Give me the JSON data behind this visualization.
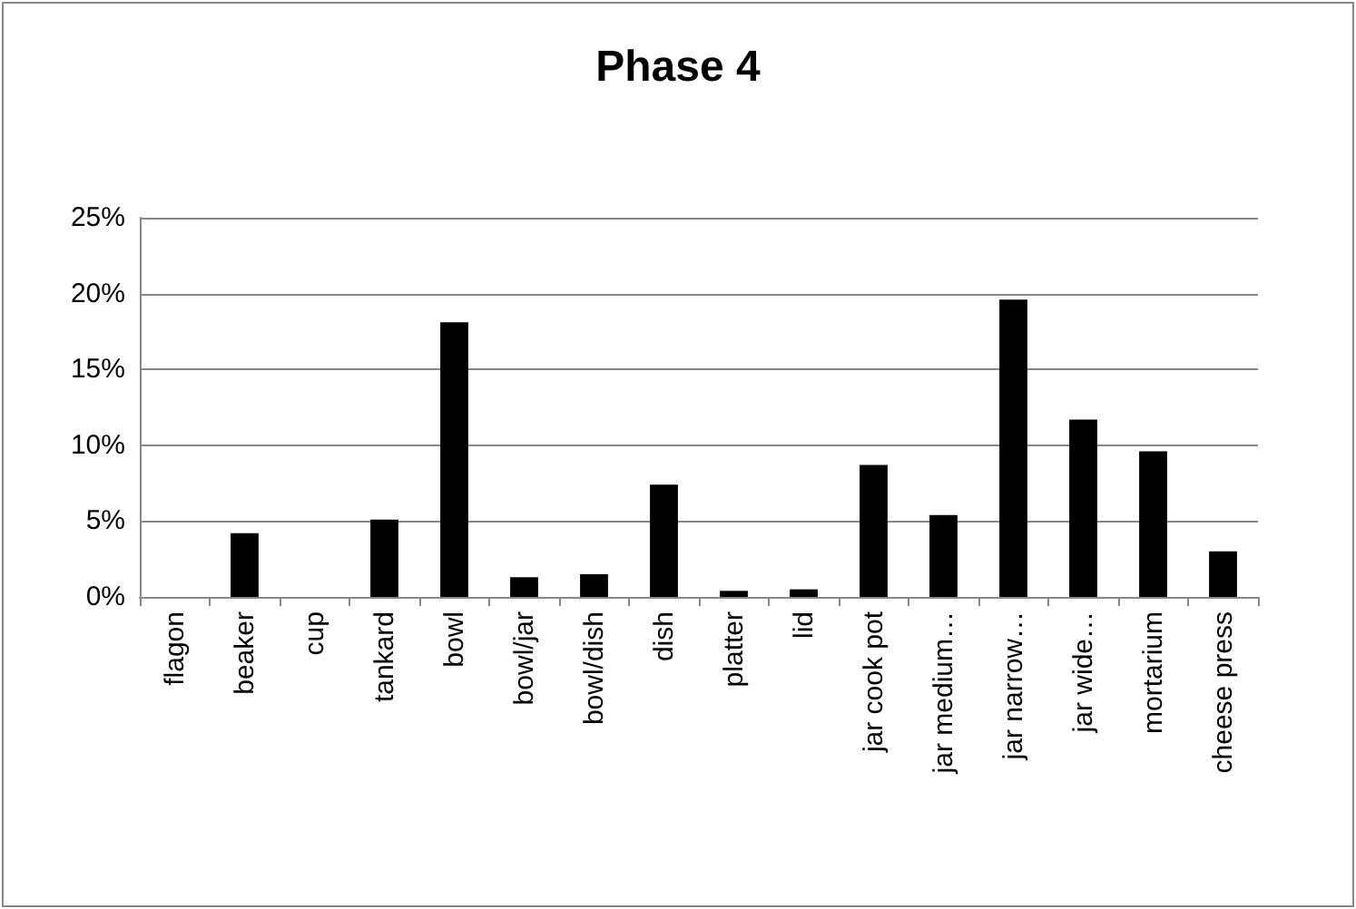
{
  "chart_data": {
    "type": "bar",
    "title": "Phase 4",
    "categories": [
      "flagon",
      "beaker",
      "cup",
      "tankard",
      "bowl",
      "bowl/jar",
      "bowl/dish",
      "dish",
      "platter",
      "lid",
      "jar cook pot",
      "jar medium…",
      "jar narrow…",
      "jar wide…",
      "mortarium",
      "cheese press"
    ],
    "values": [
      0,
      4.2,
      0,
      5.1,
      18.1,
      1.3,
      1.5,
      7.4,
      0.4,
      0.5,
      8.7,
      5.4,
      19.6,
      11.7,
      9.6,
      3.0
    ],
    "color": "#000000",
    "ylim": [
      0,
      25
    ],
    "yticks": [
      {
        "value": 0,
        "label": "0%"
      },
      {
        "value": 5,
        "label": "5%"
      },
      {
        "value": 10,
        "label": "10%"
      },
      {
        "value": 15,
        "label": "15%"
      },
      {
        "value": 20,
        "label": "20%"
      },
      {
        "value": 25,
        "label": "25%"
      }
    ],
    "grid": "y"
  }
}
